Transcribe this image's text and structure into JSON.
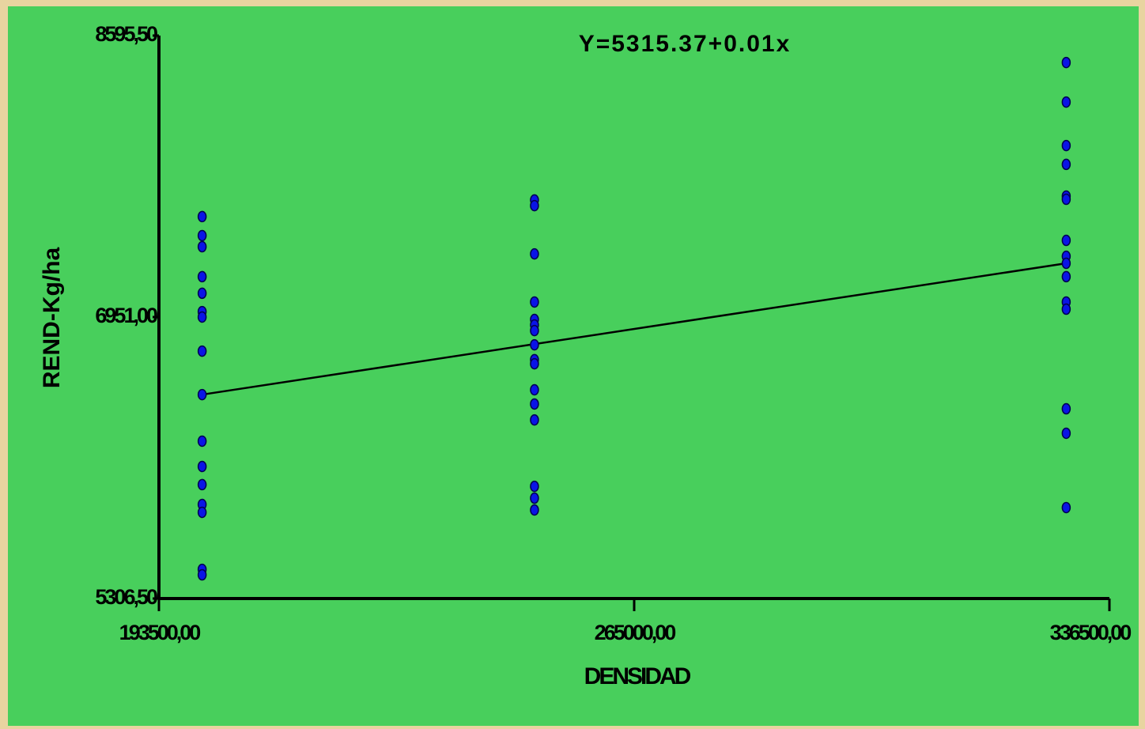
{
  "chart_data": {
    "type": "scatter",
    "title": "Y=5315.37+0.01x",
    "x_label": "DENSIDAD",
    "y_label": "REND-Kg/ha",
    "color": "#0a14e6",
    "x": [
      200000,
      200000,
      200000,
      200000,
      200000,
      200000,
      200000,
      200000,
      200000,
      200000,
      200000,
      200000,
      200000,
      200000,
      200000,
      200000,
      250000,
      250000,
      250000,
      250000,
      250000,
      250000,
      250000,
      250000,
      250000,
      250000,
      250000,
      250000,
      250000,
      250000,
      250000,
      250000,
      330000,
      330000,
      330000,
      330000,
      330000,
      330000,
      330000,
      330000,
      330000,
      330000,
      330000,
      330000,
      330000,
      330000,
      330000
    ],
    "values": [
      7538,
      7427,
      7362,
      7187,
      7090,
      6983,
      6951,
      6752,
      6498,
      6226,
      6078,
      5972,
      5856,
      5810,
      5477,
      5445,
      7635,
      7602,
      7320,
      7039,
      6937,
      6905,
      6872,
      6789,
      6702,
      6678,
      6526,
      6443,
      6350,
      5962,
      5893,
      5824,
      8438,
      8207,
      7953,
      7843,
      7658,
      7639,
      7399,
      7306,
      7265,
      7187,
      7039,
      6997,
      6415,
      6272,
      5838
    ],
    "fit": {
      "x": [
        200000,
        330000
      ],
      "y": [
        6498,
        7265
      ]
    },
    "xlim": [
      193500,
      336500
    ],
    "xticks": [
      {
        "value": 193500,
        "label": "193500,00"
      },
      {
        "value": 265000,
        "label": "265000,00"
      },
      {
        "value": 336500,
        "label": "336500,00"
      }
    ],
    "ylim": [
      5306.5,
      8595.5
    ],
    "yticks": [
      {
        "value": 5306.5,
        "label": "5306,50"
      },
      {
        "value": 6951,
        "label": "6951,00"
      },
      {
        "value": 8595.5,
        "label": "8595,50"
      }
    ]
  }
}
